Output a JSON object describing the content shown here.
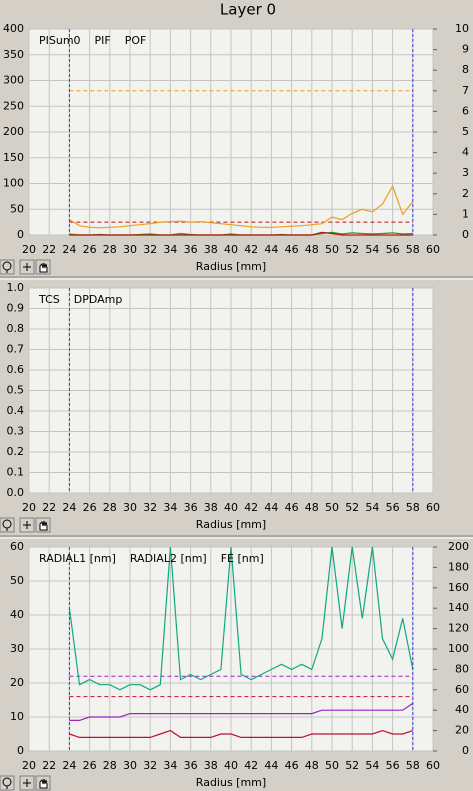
{
  "header": {
    "title": "Layer 0"
  },
  "chart_data": [
    {
      "type": "line",
      "xlabel": "Radius [mm]",
      "xlim": [
        20,
        60
      ],
      "xticks": [
        20,
        22,
        24,
        26,
        28,
        30,
        32,
        34,
        36,
        38,
        40,
        42,
        44,
        46,
        48,
        50,
        52,
        54,
        56,
        58,
        60
      ],
      "ylim": [
        0,
        400
      ],
      "yticks": [
        0,
        50,
        100,
        150,
        200,
        250,
        300,
        350,
        400
      ],
      "y2lim": [
        0,
        10
      ],
      "y2ticks": [
        0,
        1,
        2,
        3,
        4,
        5,
        6,
        7,
        8,
        9,
        10
      ],
      "grid": true,
      "markers": [
        24,
        58
      ],
      "marker_color": "#3a3ae0",
      "thresholds": [
        {
          "value": 280,
          "color": "#e8a020"
        },
        {
          "value": 25,
          "color": "#c01010"
        }
      ],
      "x": [
        24,
        25,
        26,
        27,
        28,
        29,
        30,
        31,
        32,
        33,
        34,
        35,
        36,
        37,
        38,
        39,
        40,
        41,
        42,
        43,
        44,
        45,
        46,
        47,
        48,
        49,
        50,
        51,
        52,
        53,
        54,
        55,
        56,
        57,
        58
      ],
      "series": [
        {
          "name": "PISum0",
          "color": "#e8a020",
          "values": [
            30,
            18,
            15,
            14,
            15,
            16,
            18,
            20,
            22,
            25,
            26,
            27,
            25,
            26,
            24,
            22,
            20,
            18,
            16,
            15,
            15,
            16,
            17,
            18,
            20,
            22,
            35,
            30,
            42,
            50,
            45,
            60,
            95,
            40,
            65
          ]
        },
        {
          "name": "PIF",
          "color": "#20a020",
          "values": [
            2,
            0,
            0,
            1,
            0,
            0,
            0,
            1,
            2,
            0,
            0,
            3,
            1,
            0,
            0,
            0,
            2,
            0,
            0,
            0,
            0,
            1,
            0,
            0,
            0,
            3,
            5,
            2,
            4,
            3,
            2,
            3,
            4,
            2,
            3
          ]
        },
        {
          "name": "POF",
          "color": "#c01010",
          "values": [
            0,
            0,
            0,
            0,
            0,
            0,
            0,
            0,
            0,
            0,
            0,
            0,
            0,
            0,
            0,
            0,
            0,
            0,
            0,
            0,
            0,
            0,
            0,
            0,
            0,
            5,
            3,
            0,
            0,
            0,
            0,
            0,
            0,
            0,
            0
          ]
        }
      ]
    },
    {
      "type": "line",
      "xlabel": "Radius [mm]",
      "xlim": [
        20,
        60
      ],
      "xticks": [
        20,
        22,
        24,
        26,
        28,
        30,
        32,
        34,
        36,
        38,
        40,
        42,
        44,
        46,
        48,
        50,
        52,
        54,
        56,
        58,
        60
      ],
      "ylim": [
        0,
        1
      ],
      "yticks": [
        {
          "value": 0,
          "label": "0.0"
        },
        0.1,
        0.2,
        0.3,
        0.4,
        0.5,
        0.6,
        0.7,
        0.8,
        0.9,
        {
          "value": 1,
          "label": "1.0"
        }
      ],
      "grid": true,
      "markers": [
        24,
        58
      ],
      "marker_color": "#3a3ae0",
      "series": [
        {
          "name": "TCS",
          "color": "#207020",
          "values": []
        },
        {
          "name": "DPDAmp",
          "color": "#c01010",
          "values": []
        }
      ]
    },
    {
      "type": "line",
      "xlabel": "Radius [mm]",
      "xlim": [
        20,
        60
      ],
      "xticks": [
        20,
        22,
        24,
        26,
        28,
        30,
        32,
        34,
        36,
        38,
        40,
        42,
        44,
        46,
        48,
        50,
        52,
        54,
        56,
        58,
        60
      ],
      "ylim": [
        0,
        60
      ],
      "yticks": [
        0,
        10,
        20,
        30,
        40,
        50,
        60
      ],
      "y2lim": [
        0,
        200
      ],
      "y2ticks": [
        0,
        20,
        40,
        60,
        80,
        100,
        120,
        140,
        160,
        180,
        200
      ],
      "grid": true,
      "markers": [
        24,
        58
      ],
      "marker_color": "#3a3ae0",
      "thresholds": [
        {
          "value": 22,
          "color": "#a020c0"
        },
        {
          "value": 16,
          "color": "#c01030"
        }
      ],
      "x": [
        24,
        25,
        26,
        27,
        28,
        29,
        30,
        31,
        32,
        33,
        34,
        35,
        36,
        37,
        38,
        39,
        40,
        41,
        42,
        43,
        44,
        45,
        46,
        47,
        48,
        49,
        50,
        51,
        52,
        53,
        54,
        55,
        56,
        57,
        58
      ],
      "series": [
        {
          "name": "RADIAL1 [nm]",
          "color": "#a020c0",
          "values": [
            9,
            9,
            10,
            10,
            10,
            10,
            11,
            11,
            11,
            11,
            11,
            11,
            11,
            11,
            11,
            11,
            11,
            11,
            11,
            11,
            11,
            11,
            11,
            11,
            11,
            12,
            12,
            12,
            12,
            12,
            12,
            12,
            12,
            12,
            14
          ]
        },
        {
          "name": "RADIAL2 [nm]",
          "color": "#c01030",
          "values": [
            5,
            4,
            4,
            4,
            4,
            4,
            4,
            4,
            4,
            5,
            6,
            4,
            4,
            4,
            4,
            5,
            5,
            4,
            4,
            4,
            4,
            4,
            4,
            4,
            5,
            5,
            5,
            5,
            5,
            5,
            5,
            6,
            5,
            5,
            6
          ]
        },
        {
          "name": "FE [nm]",
          "color": "#10a880",
          "axis": "y2",
          "values": [
            140,
            65,
            70,
            65,
            65,
            60,
            65,
            65,
            60,
            65,
            200,
            70,
            75,
            70,
            75,
            80,
            200,
            75,
            70,
            75,
            80,
            85,
            80,
            85,
            80,
            110,
            200,
            120,
            200,
            130,
            200,
            110,
            90,
            130,
            80
          ]
        }
      ]
    }
  ]
}
